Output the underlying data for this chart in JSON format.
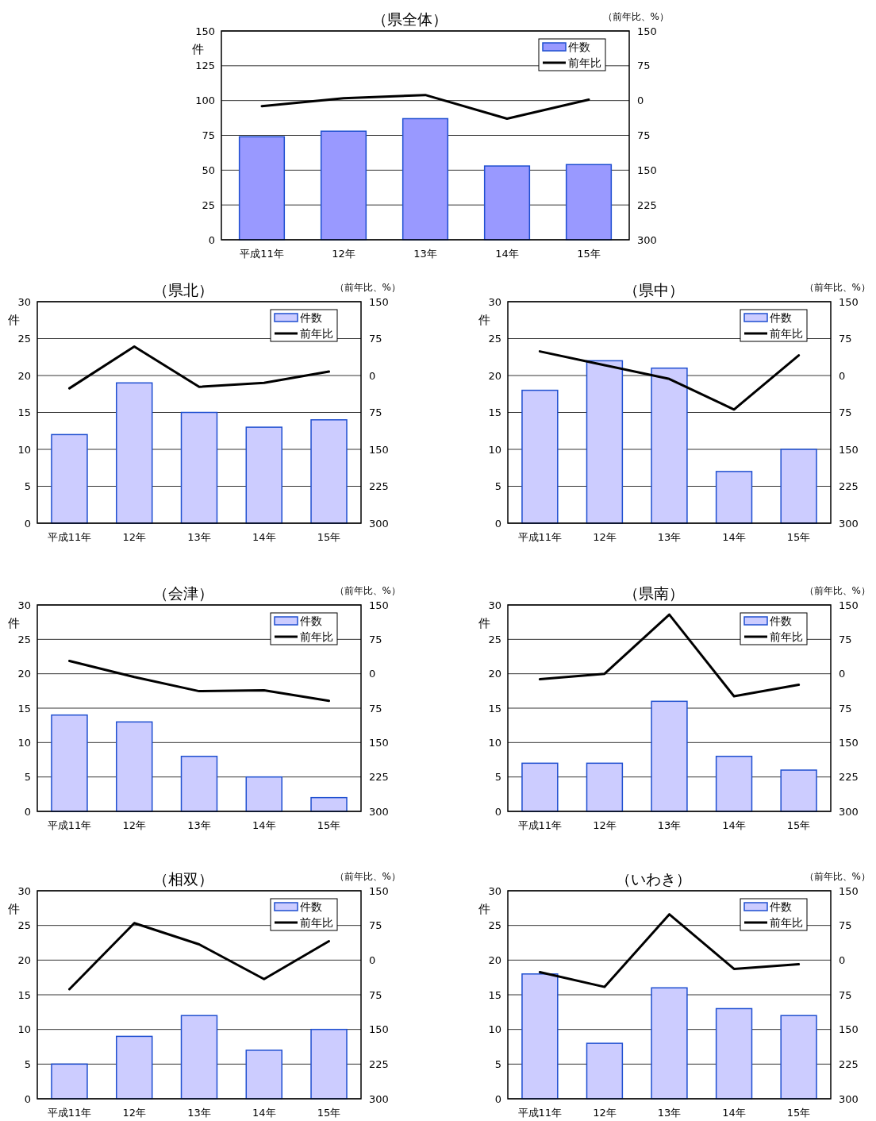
{
  "chart_data": [
    {
      "type": "bar",
      "title": "（県全体）",
      "ylabel": "件",
      "y2label": "（前年比、%）",
      "categories": [
        "平成11年",
        "12年",
        "13年",
        "14年",
        "15年"
      ],
      "series": [
        {
          "name": "件数",
          "color": "#9999ff",
          "values": [
            74,
            78,
            87,
            53,
            54
          ]
        },
        {
          "name": "前年比",
          "type": "line",
          "axis": "y2",
          "color": "#000000",
          "values": [
            -12,
            5,
            12,
            -39,
            2
          ]
        }
      ],
      "ylim": [
        0,
        150
      ],
      "yticks": [
        0,
        25,
        50,
        75,
        100,
        125,
        150
      ],
      "y2lim": [
        -300,
        150
      ],
      "y2ticks": [
        150,
        75,
        0,
        {
          "value": -75,
          "label": "75"
        },
        {
          "value": -150,
          "label": "150"
        },
        {
          "value": -225,
          "label": "225"
        },
        {
          "value": -300,
          "label": "300"
        }
      ],
      "grid": "y",
      "legend": "top right"
    },
    {
      "type": "bar",
      "title": "（県北）",
      "ylabel": "件",
      "y2label": "（前年比、%）",
      "categories": [
        "平成11年",
        "12年",
        "13年",
        "14年",
        "15年"
      ],
      "series": [
        {
          "name": "件数",
          "color": "#ccccff",
          "values": [
            12,
            19,
            15,
            13,
            14
          ]
        },
        {
          "name": "前年比",
          "type": "line",
          "axis": "y2",
          "color": "#000000",
          "values": [
            -26,
            59,
            -23,
            -15,
            8
          ]
        }
      ],
      "ylim": [
        0,
        30
      ],
      "yticks": [
        0,
        5,
        10,
        15,
        20,
        25,
        30
      ],
      "y2lim": [
        -300,
        150
      ],
      "y2ticks": [
        150,
        75,
        0,
        {
          "value": -75,
          "label": "75"
        },
        {
          "value": -150,
          "label": "150"
        },
        {
          "value": -225,
          "label": "225"
        },
        {
          "value": -300,
          "label": "300"
        }
      ],
      "grid": "y",
      "legend": "top right"
    },
    {
      "type": "bar",
      "title": "（県中）",
      "ylabel": "件",
      "y2label": "（前年比、%）",
      "categories": [
        "平成11年",
        "12年",
        "13年",
        "14年",
        "15年"
      ],
      "series": [
        {
          "name": "件数",
          "color": "#ccccff",
          "values": [
            18,
            22,
            21,
            7,
            10
          ]
        },
        {
          "name": "前年比",
          "type": "line",
          "axis": "y2",
          "color": "#000000",
          "values": [
            49,
            21,
            -7,
            -69,
            41
          ]
        }
      ],
      "ylim": [
        0,
        30
      ],
      "yticks": [
        0,
        5,
        10,
        15,
        20,
        25,
        30
      ],
      "y2lim": [
        -300,
        150
      ],
      "y2ticks": [
        150,
        75,
        0,
        {
          "value": -75,
          "label": "75"
        },
        {
          "value": -150,
          "label": "150"
        },
        {
          "value": -225,
          "label": "225"
        },
        {
          "value": -300,
          "label": "300"
        }
      ],
      "grid": "y",
      "legend": "top right"
    },
    {
      "type": "bar",
      "title": "（会津）",
      "ylabel": "件",
      "y2label": "（前年比、%）",
      "categories": [
        "平成11年",
        "12年",
        "13年",
        "14年",
        "15年"
      ],
      "series": [
        {
          "name": "件数",
          "color": "#ccccff",
          "values": [
            14,
            13,
            8,
            5,
            2
          ]
        },
        {
          "name": "前年比",
          "type": "line",
          "axis": "y2",
          "color": "#000000",
          "values": [
            28,
            -7,
            -38,
            -36,
            -59
          ]
        }
      ],
      "ylim": [
        0,
        30
      ],
      "yticks": [
        0,
        5,
        10,
        15,
        20,
        25,
        30
      ],
      "y2lim": [
        -300,
        150
      ],
      "y2ticks": [
        150,
        75,
        0,
        {
          "value": -75,
          "label": "75"
        },
        {
          "value": -150,
          "label": "150"
        },
        {
          "value": -225,
          "label": "225"
        },
        {
          "value": -300,
          "label": "300"
        }
      ],
      "grid": "y",
      "legend": "top right"
    },
    {
      "type": "bar",
      "title": "（県南）",
      "ylabel": "件",
      "y2label": "（前年比、%）",
      "categories": [
        "平成11年",
        "12年",
        "13年",
        "14年",
        "15年"
      ],
      "series": [
        {
          "name": "件数",
          "color": "#ccccff",
          "values": [
            7,
            7,
            16,
            8,
            6
          ]
        },
        {
          "name": "前年比",
          "type": "line",
          "axis": "y2",
          "color": "#000000",
          "values": [
            -12,
            0,
            129,
            -49,
            -24
          ]
        }
      ],
      "ylim": [
        0,
        30
      ],
      "yticks": [
        0,
        5,
        10,
        15,
        20,
        25,
        30
      ],
      "y2lim": [
        -300,
        150
      ],
      "y2ticks": [
        150,
        75,
        0,
        {
          "value": -75,
          "label": "75"
        },
        {
          "value": -150,
          "label": "150"
        },
        {
          "value": -225,
          "label": "225"
        },
        {
          "value": -300,
          "label": "300"
        }
      ],
      "grid": "y",
      "legend": "top right"
    },
    {
      "type": "bar",
      "title": "（相双）",
      "ylabel": "件",
      "y2label": "（前年比、%）",
      "categories": [
        "平成11年",
        "12年",
        "13年",
        "14年",
        "15年"
      ],
      "series": [
        {
          "name": "件数",
          "color": "#ccccff",
          "values": [
            5,
            9,
            12,
            7,
            10
          ]
        },
        {
          "name": "前年比",
          "type": "line",
          "axis": "y2",
          "color": "#000000",
          "values": [
            -63,
            80,
            34,
            -41,
            41
          ]
        }
      ],
      "ylim": [
        0,
        30
      ],
      "yticks": [
        0,
        5,
        10,
        15,
        20,
        25,
        30
      ],
      "y2lim": [
        -300,
        150
      ],
      "y2ticks": [
        150,
        75,
        0,
        {
          "value": -75,
          "label": "75"
        },
        {
          "value": -150,
          "label": "150"
        },
        {
          "value": -225,
          "label": "225"
        },
        {
          "value": -300,
          "label": "300"
        }
      ],
      "grid": "y",
      "legend": "top right"
    },
    {
      "type": "bar",
      "title": "（いわき）",
      "ylabel": "件",
      "y2label": "（前年比、%）",
      "categories": [
        "平成11年",
        "12年",
        "13年",
        "14年",
        "15年"
      ],
      "series": [
        {
          "name": "件数",
          "color": "#ccccff",
          "values": [
            18,
            8,
            16,
            13,
            12
          ]
        },
        {
          "name": "前年比",
          "type": "line",
          "axis": "y2",
          "color": "#000000",
          "values": [
            -26,
            -58,
            99,
            -19,
            -9
          ]
        }
      ],
      "ylim": [
        0,
        30
      ],
      "yticks": [
        0,
        5,
        10,
        15,
        20,
        25,
        30
      ],
      "y2lim": [
        -300,
        150
      ],
      "y2ticks": [
        150,
        75,
        0,
        {
          "value": -75,
          "label": "75"
        },
        {
          "value": -150,
          "label": "150"
        },
        {
          "value": -225,
          "label": "225"
        },
        {
          "value": -300,
          "label": "300"
        }
      ],
      "grid": "y",
      "legend": "top right"
    }
  ]
}
